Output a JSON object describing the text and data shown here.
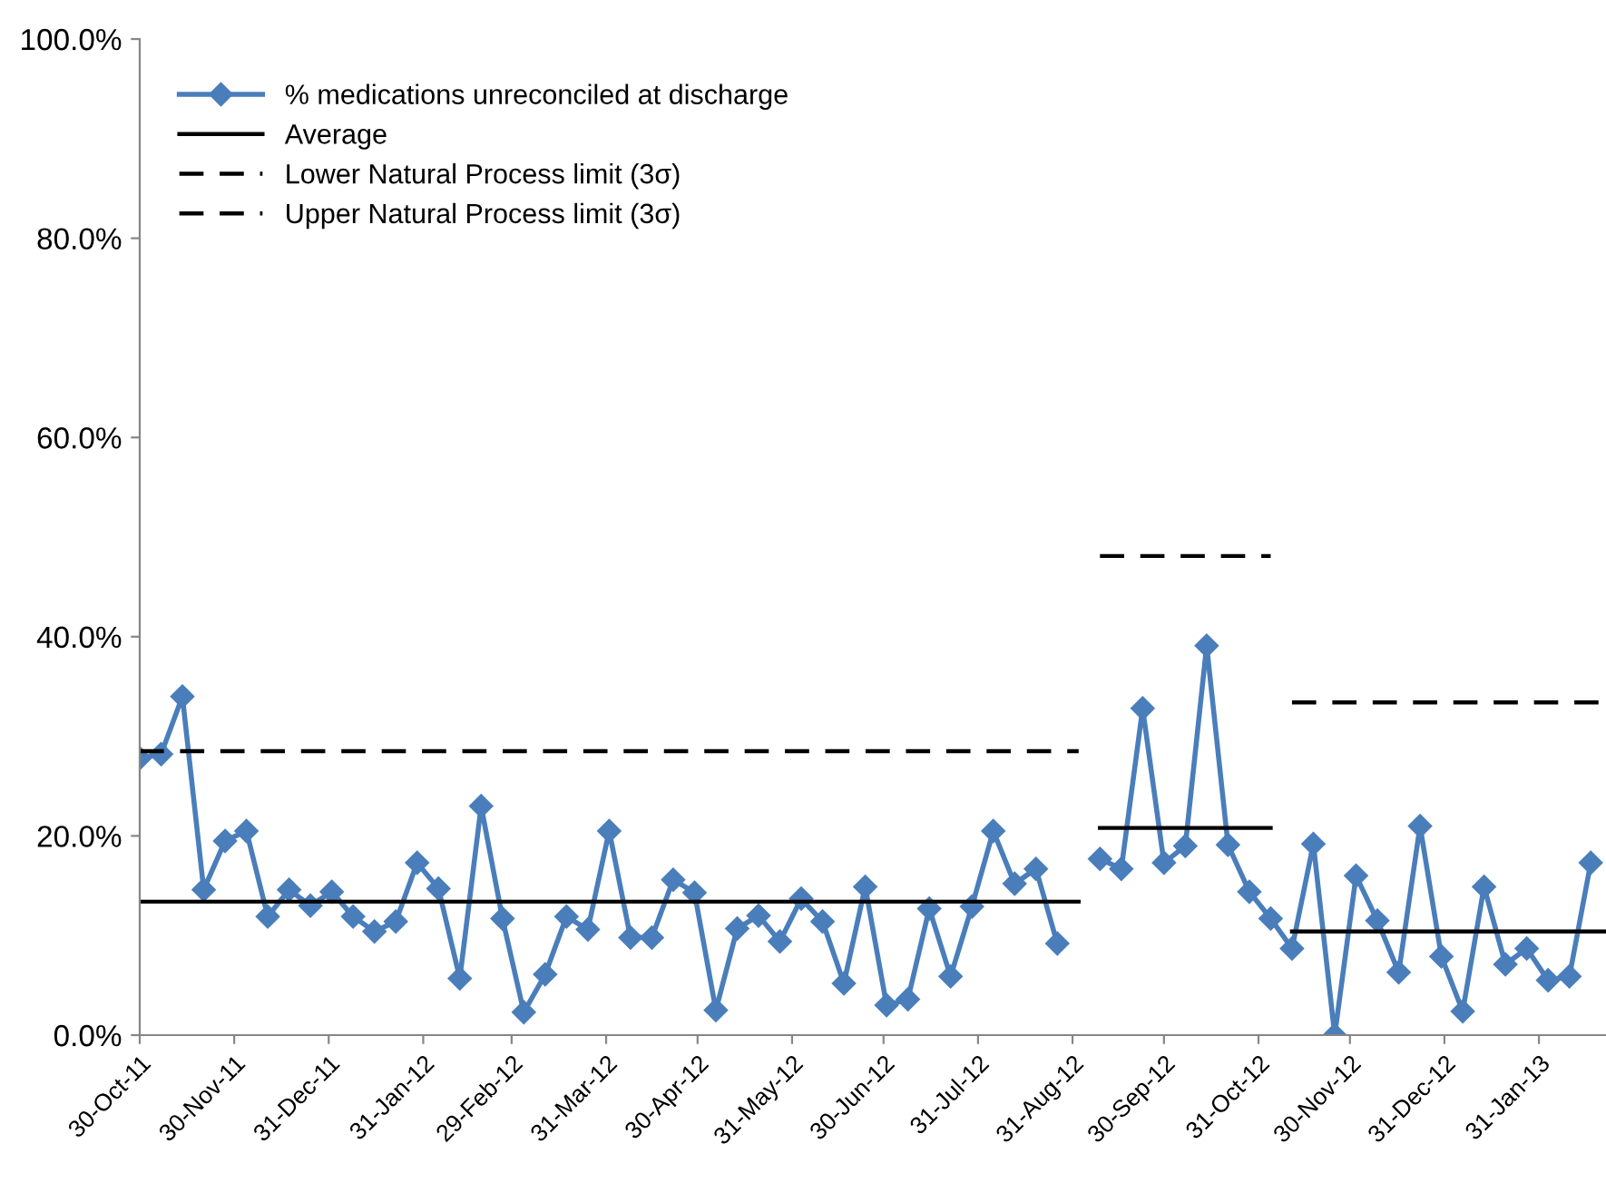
{
  "chart_data": {
    "type": "line",
    "ylim": [
      0,
      100
    ],
    "yticks": [
      {
        "value": 0,
        "label": "0.0%"
      },
      {
        "value": 20,
        "label": "20.0%"
      },
      {
        "value": 40,
        "label": "40.0%"
      },
      {
        "value": 60,
        "label": "60.0%"
      },
      {
        "value": 80,
        "label": "80.0%"
      },
      {
        "value": 100,
        "label": "100.0%"
      }
    ],
    "xlim": [
      "2011-10-30",
      "2013-02-22"
    ],
    "xticks": [
      {
        "value": "2011-10-30",
        "label": "30-Oct-11"
      },
      {
        "value": "2011-11-30",
        "label": "30-Nov-11"
      },
      {
        "value": "2011-12-31",
        "label": "31-Dec-11"
      },
      {
        "value": "2012-01-31",
        "label": "31-Jan-12"
      },
      {
        "value": "2012-02-29",
        "label": "29-Feb-12"
      },
      {
        "value": "2012-03-31",
        "label": "31-Mar-12"
      },
      {
        "value": "2012-04-30",
        "label": "30-Apr-12"
      },
      {
        "value": "2012-05-31",
        "label": "31-May-12"
      },
      {
        "value": "2012-06-30",
        "label": "30-Jun-12"
      },
      {
        "value": "2012-07-31",
        "label": "31-Jul-12"
      },
      {
        "value": "2012-08-31",
        "label": "31-Aug-12"
      },
      {
        "value": "2012-09-30",
        "label": "30-Sep-12"
      },
      {
        "value": "2012-10-31",
        "label": "31-Oct-12"
      },
      {
        "value": "2012-11-30",
        "label": "30-Nov-12"
      },
      {
        "value": "2012-12-31",
        "label": "31-Dec-12"
      },
      {
        "value": "2013-01-31",
        "label": "31-Jan-13"
      }
    ],
    "grid": false,
    "legend": "top left",
    "series": [
      {
        "name": "% medications unreconciled at discharge",
        "color": "#4a7ebb",
        "marker": "diamond",
        "line_style": "solid",
        "x": [
          "2011-10-30",
          "2011-11-06",
          "2011-11-13",
          "2011-11-20",
          "2011-11-27",
          "2011-12-04",
          "2011-12-11",
          "2011-12-18",
          "2011-12-25",
          "2012-01-01",
          "2012-01-08",
          "2012-01-15",
          "2012-01-22",
          "2012-01-29",
          "2012-02-05",
          "2012-02-12",
          "2012-02-19",
          "2012-02-26",
          "2012-03-04",
          "2012-03-11",
          "2012-03-18",
          "2012-03-25",
          "2012-04-01",
          "2012-04-08",
          "2012-04-15",
          "2012-04-22",
          "2012-04-29",
          "2012-05-06",
          "2012-05-13",
          "2012-05-20",
          "2012-05-27",
          "2012-06-03",
          "2012-06-10",
          "2012-06-17",
          "2012-06-24",
          "2012-07-01",
          "2012-07-08",
          "2012-07-15",
          "2012-07-22",
          "2012-07-29",
          "2012-08-05",
          "2012-08-12",
          "2012-08-19",
          "2012-08-26",
          "2012-09-02",
          "2012-09-09",
          "2012-09-16",
          "2012-09-23",
          "2012-09-30",
          "2012-10-07",
          "2012-10-14",
          "2012-10-21",
          "2012-10-28",
          "2012-11-04",
          "2012-11-11",
          "2012-11-18",
          "2012-11-25",
          "2012-12-02",
          "2012-12-09",
          "2012-12-16",
          "2012-12-23",
          "2012-12-30",
          "2013-01-06",
          "2013-01-13",
          "2013-01-20",
          "2013-01-27",
          "2013-02-03",
          "2013-02-10",
          "2013-02-17"
        ],
        "values": [
          27.8,
          28.2,
          34.0,
          14.6,
          19.5,
          20.5,
          11.9,
          14.6,
          13.0,
          14.4,
          11.9,
          10.4,
          11.4,
          17.3,
          14.7,
          5.7,
          23.0,
          11.7,
          2.3,
          6.1,
          11.9,
          10.6,
          20.5,
          9.8,
          9.8,
          15.6,
          14.3,
          2.5,
          10.7,
          12.0,
          9.4,
          13.7,
          11.4,
          5.2,
          14.9,
          3.0,
          3.6,
          12.7,
          5.9,
          12.9,
          20.5,
          15.2,
          16.7,
          9.2,
          null,
          17.7,
          16.7,
          32.8,
          17.3,
          19.0,
          39.1,
          19.1,
          14.4,
          11.7,
          8.7,
          19.2,
          0.0,
          16.0,
          11.5,
          6.3,
          21.0,
          7.9,
          2.4,
          14.9,
          7.1,
          8.7,
          5.5,
          5.9,
          17.3
        ]
      },
      {
        "name": "Average",
        "color": "#000000",
        "marker": "none",
        "line_style": "solid",
        "x": [
          "2011-10-30",
          "2012-09-02",
          null,
          "2012-09-09",
          "2012-11-04",
          null,
          "2012-11-11",
          "2013-02-22"
        ],
        "values": [
          13.4,
          13.4,
          null,
          20.8,
          20.8,
          null,
          10.4,
          10.4
        ]
      },
      {
        "name": "Lower Natural Process limit (3σ)",
        "color": "#000000",
        "marker": "none",
        "line_style": "dashed"
      },
      {
        "name": "Upper Natural Process limit (3σ)",
        "color": "#000000",
        "marker": "none",
        "line_style": "dashed",
        "x": [
          "2011-10-30",
          "2012-09-02",
          null,
          "2012-09-09",
          "2012-11-04",
          null,
          "2012-11-11",
          "2013-02-22"
        ],
        "values": [
          28.5,
          28.5,
          null,
          48.1,
          48.1,
          null,
          33.4,
          33.4
        ]
      }
    ]
  }
}
